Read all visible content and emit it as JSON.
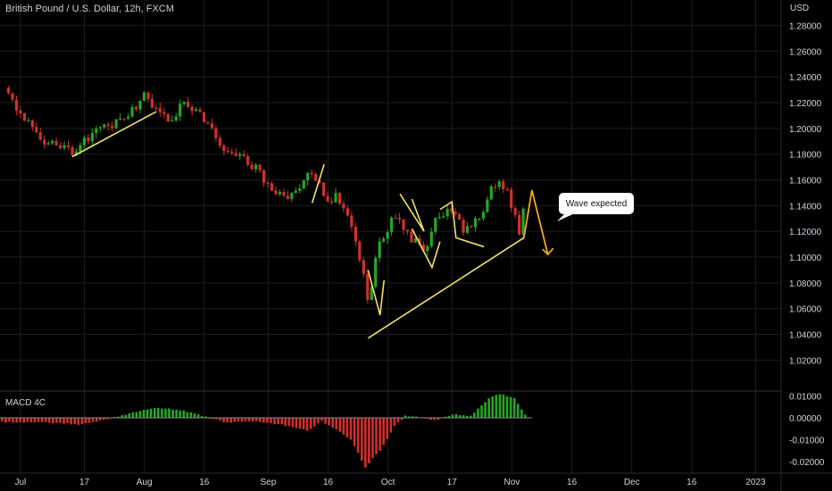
{
  "header": {
    "title": "British Pound / U.S. Dollar, 12h, FXCM"
  },
  "price_axis": {
    "currency": "USD",
    "ticks": [
      "1.28000",
      "1.26000",
      "1.24000",
      "1.22000",
      "1.20000",
      "1.18000",
      "1.16000",
      "1.14000",
      "1.12000",
      "1.10000",
      "1.08000",
      "1.06000",
      "1.04000",
      "1.02000"
    ]
  },
  "macd": {
    "label": "MACD 4C",
    "ticks": [
      "0.01000",
      "0.00000",
      "-0.01000",
      "-0.02000"
    ]
  },
  "time_axis": {
    "labels": [
      "Jul",
      "17",
      "Aug",
      "16",
      "Sep",
      "16",
      "Oct",
      "17",
      "Nov",
      "16",
      "Dec",
      "16",
      "2023"
    ]
  },
  "annotation": {
    "text": "Wave expected"
  },
  "colors": {
    "background": "#000000",
    "up": "#26a625",
    "down": "#d0302c",
    "trendline": "#f2e266",
    "projection": "#f5a623",
    "grid": "#1e1e1e"
  },
  "chart_data": [
    {
      "type": "candlestick",
      "title": "British Pound / U.S. Dollar, 12h, FXCM",
      "y_axis": {
        "label": "USD",
        "range": [
          1.02,
          1.28
        ]
      },
      "x_range": [
        "2022-06-27",
        "2023-01-01"
      ],
      "close_approx": [
        [
          "2022-06-28",
          1.225
        ],
        [
          "2022-07-01",
          1.212
        ],
        [
          "2022-07-05",
          1.2
        ],
        [
          "2022-07-07",
          1.19
        ],
        [
          "2022-07-11",
          1.188
        ],
        [
          "2022-07-14",
          1.182
        ],
        [
          "2022-07-17",
          1.19
        ],
        [
          "2022-07-21",
          1.198
        ],
        [
          "2022-07-25",
          1.205
        ],
        [
          "2022-07-28",
          1.212
        ],
        [
          "2022-08-01",
          1.225
        ],
        [
          "2022-08-04",
          1.215
        ],
        [
          "2022-08-08",
          1.208
        ],
        [
          "2022-08-11",
          1.222
        ],
        [
          "2022-08-15",
          1.21
        ],
        [
          "2022-08-18",
          1.198
        ],
        [
          "2022-08-22",
          1.18
        ],
        [
          "2022-08-25",
          1.18
        ],
        [
          "2022-08-29",
          1.168
        ],
        [
          "2022-09-01",
          1.155
        ],
        [
          "2022-09-05",
          1.148
        ],
        [
          "2022-09-08",
          1.15
        ],
        [
          "2022-09-12",
          1.168
        ],
        [
          "2022-09-15",
          1.148
        ],
        [
          "2022-09-19",
          1.145
        ],
        [
          "2022-09-22",
          1.125
        ],
        [
          "2022-09-26",
          1.068
        ],
        [
          "2022-09-29",
          1.112
        ],
        [
          "2022-10-03",
          1.132
        ],
        [
          "2022-10-06",
          1.115
        ],
        [
          "2022-10-10",
          1.105
        ],
        [
          "2022-10-13",
          1.13
        ],
        [
          "2022-10-17",
          1.135
        ],
        [
          "2022-10-20",
          1.122
        ],
        [
          "2022-10-24",
          1.128
        ],
        [
          "2022-10-27",
          1.16
        ],
        [
          "2022-10-31",
          1.15
        ],
        [
          "2022-11-03",
          1.117
        ],
        [
          "2022-11-04",
          1.137
        ]
      ],
      "trendlines": [
        {
          "from": [
            "2022-07-14",
            1.178
          ],
          "to": [
            "2022-08-04",
            1.213
          ]
        },
        {
          "from": [
            "2022-09-12",
            1.142
          ],
          "to": [
            "2022-09-15",
            1.172
          ]
        },
        {
          "from": [
            "2022-09-26",
            1.037
          ],
          "to": [
            "2022-11-04",
            1.115
          ]
        }
      ],
      "projection": [
        [
          "2022-11-04",
          1.115
        ],
        [
          "2022-11-06",
          1.152
        ],
        [
          "2022-11-10",
          1.102
        ]
      ]
    },
    {
      "type": "bar",
      "title": "MACD 4C",
      "y_axis": {
        "range": [
          -0.022,
          0.012
        ]
      },
      "trend": "negative through mid-July, positive peak ~+0.0050 early Aug, deep negative trough ~-0.0225 late Sep, positive peak ~+0.0110 late Oct"
    }
  ]
}
